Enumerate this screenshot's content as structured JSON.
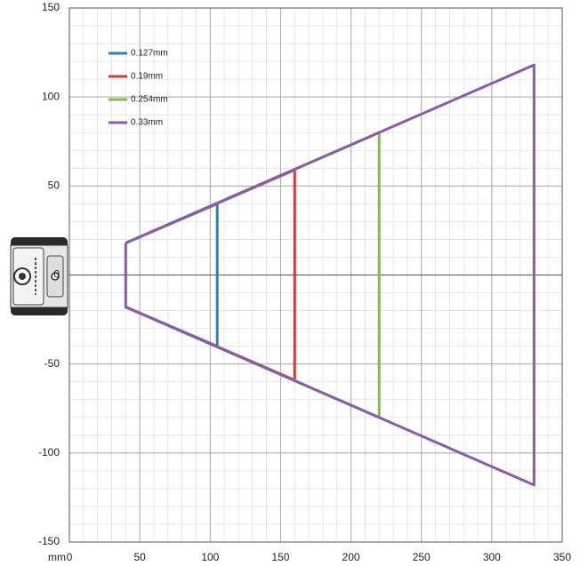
{
  "chart_data": {
    "type": "line",
    "x_label": "mm",
    "xlim": [
      0,
      350
    ],
    "xticks": [
      0,
      50,
      100,
      150,
      200,
      250,
      300,
      350
    ],
    "ylim": [
      -150,
      150
    ],
    "yticks": [
      -150,
      -100,
      -50,
      0,
      50,
      100,
      150
    ],
    "grid": true,
    "minor_step": 10,
    "legend": "upper left",
    "series": [
      {
        "name": "0.127mm",
        "color": "#2f7fb8",
        "x": [
          40,
          105,
          105,
          40
        ],
        "values": [
          18,
          40,
          -40,
          -18
        ]
      },
      {
        "name": "0.19mm",
        "color": "#d23b3b",
        "x": [
          40,
          160,
          160,
          40
        ],
        "values": [
          18,
          59,
          -59,
          -18
        ]
      },
      {
        "name": "0.254mm",
        "color": "#7cc04a",
        "x": [
          40,
          220,
          220,
          40
        ],
        "values": [
          18,
          80,
          -80,
          -18
        ]
      },
      {
        "name": "0.33mm",
        "color": "#8a5aac",
        "x": [
          40,
          330,
          330,
          40,
          40
        ],
        "values": [
          18,
          118,
          -118,
          -18,
          18
        ]
      }
    ]
  }
}
